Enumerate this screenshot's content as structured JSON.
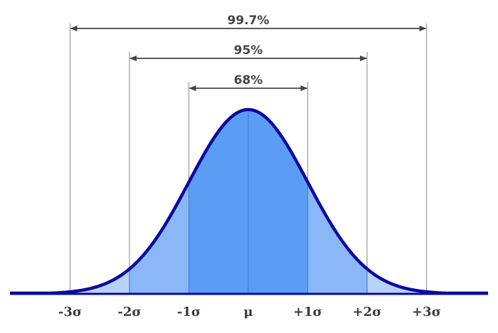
{
  "diagram": {
    "type": "normal-distribution",
    "intervals": [
      {
        "label": "99.7%",
        "from": -3,
        "to": 3
      },
      {
        "label": "95%",
        "from": -2,
        "to": 2
      },
      {
        "label": "68%",
        "from": -1,
        "to": 1
      }
    ],
    "axis_ticks": [
      {
        "label": "-3σ",
        "value": -3
      },
      {
        "label": "-2σ",
        "value": -2
      },
      {
        "label": "-1σ",
        "value": -1
      },
      {
        "label": "μ",
        "value": 0
      },
      {
        "label": "+1σ",
        "value": 1
      },
      {
        "label": "+2σ",
        "value": 2
      },
      {
        "label": "+3σ",
        "value": 3
      }
    ],
    "x_range": [
      -4,
      4
    ],
    "bands": [
      {
        "range": [
          -1,
          1
        ],
        "color": "#5b9cf4"
      },
      {
        "range": [
          -2,
          2
        ],
        "color": "#8ab8f7"
      },
      {
        "range": [
          -3,
          3
        ],
        "color": "#b8d3fa"
      }
    ],
    "colors": {
      "curve": "#0a0a9e",
      "guide_line": "#9a9a9a",
      "divider_line": "#3d82e6",
      "arrow": "#444444",
      "label": "#444444",
      "baseline": "#0a0a9e"
    }
  }
}
